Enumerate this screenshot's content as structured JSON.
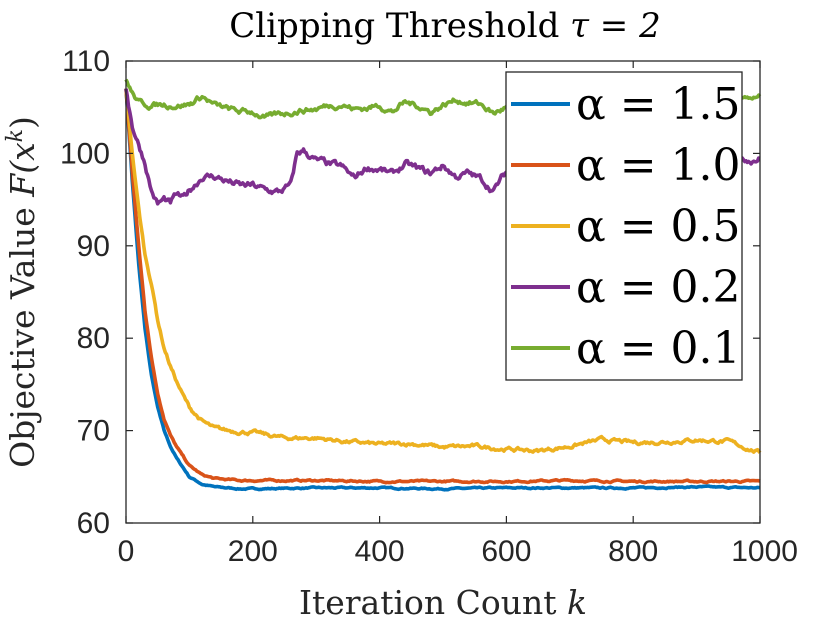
{
  "chart_data": {
    "type": "line",
    "title_prefix": "Clipping Threshold ",
    "title_math": "τ = 2",
    "xlabel_prefix": "Iteration Count ",
    "xlabel_math": "k",
    "ylabel_prefix": "Objective Value ",
    "ylabel_math": "F(x",
    "ylabel_sup": "k",
    "ylabel_close": ")",
    "xlim": [
      0,
      1000
    ],
    "ylim": [
      60,
      110
    ],
    "xticks": [
      0,
      200,
      400,
      600,
      800,
      1000
    ],
    "yticks": [
      60,
      70,
      80,
      90,
      100,
      110
    ],
    "legend_position": "top-right",
    "series": [
      {
        "name": "α = 1.5",
        "color": "#0072BD",
        "x": [
          0,
          10,
          20,
          30,
          40,
          50,
          60,
          70,
          80,
          90,
          100,
          120,
          140,
          160,
          180,
          200,
          300,
          400,
          500,
          600,
          700,
          800,
          900,
          1000
        ],
        "y": [
          107,
          97,
          88,
          81,
          76,
          72.5,
          70,
          68.3,
          67,
          66,
          65,
          64.2,
          63.9,
          63.8,
          63.7,
          63.7,
          63.8,
          63.8,
          63.7,
          63.8,
          63.8,
          63.8,
          63.9,
          63.8
        ]
      },
      {
        "name": "α = 1.0",
        "color": "#D95319",
        "x": [
          0,
          10,
          20,
          30,
          40,
          50,
          60,
          70,
          80,
          90,
          100,
          120,
          140,
          160,
          180,
          200,
          300,
          400,
          500,
          600,
          700,
          800,
          900,
          1000
        ],
        "y": [
          107,
          98,
          90,
          83,
          78,
          74,
          71.3,
          69.5,
          68.2,
          67.2,
          66.2,
          65.2,
          64.8,
          64.7,
          64.6,
          64.6,
          64.6,
          64.5,
          64.5,
          64.5,
          64.6,
          64.5,
          64.5,
          64.5
        ]
      },
      {
        "name": "α = 0.5",
        "color": "#EDB120",
        "x": [
          0,
          10,
          20,
          30,
          40,
          50,
          60,
          70,
          80,
          90,
          100,
          120,
          140,
          160,
          200,
          250,
          300,
          350,
          400,
          450,
          500,
          550,
          600,
          650,
          700,
          750,
          800,
          850,
          900,
          950,
          1000
        ],
        "y": [
          107,
          100,
          94,
          89,
          86,
          82,
          79,
          77,
          75.3,
          73.8,
          72.5,
          71,
          70.2,
          70,
          69.8,
          69.2,
          69.2,
          68.8,
          68.5,
          68.6,
          68.2,
          68.3,
          68,
          67.8,
          68.3,
          69,
          68.7,
          68.8,
          69,
          68.8,
          67.6
        ]
      },
      {
        "name": "α = 0.2",
        "color": "#7E2F8E",
        "x": [
          0,
          10,
          20,
          30,
          40,
          50,
          60,
          70,
          80,
          90,
          100,
          120,
          140,
          160,
          180,
          200,
          220,
          240,
          260,
          270,
          280,
          300,
          320,
          340,
          360,
          380,
          400,
          420,
          440,
          460,
          480,
          500,
          520,
          540,
          560,
          580,
          600,
          1000
        ],
        "y": [
          107,
          103,
          101,
          99,
          96,
          94.5,
          95,
          94.5,
          95.5,
          95,
          96,
          97.5,
          97.5,
          97,
          96.5,
          96.5,
          96,
          95.8,
          96.5,
          100,
          100.3,
          99.2,
          98.8,
          98.5,
          97.3,
          98.5,
          98.3,
          97.7,
          98.8,
          98.3,
          97.8,
          98.7,
          97.5,
          97.8,
          97.2,
          96,
          98,
          99.5
        ]
      },
      {
        "name": "α = 0.1",
        "color": "#77AC30",
        "x": [
          0,
          10,
          20,
          40,
          60,
          80,
          100,
          120,
          140,
          160,
          180,
          200,
          220,
          240,
          260,
          280,
          300,
          320,
          340,
          360,
          380,
          400,
          420,
          440,
          460,
          480,
          500,
          520,
          540,
          560,
          580,
          600,
          1000
        ],
        "y": [
          108,
          106.5,
          105.5,
          105.2,
          105.3,
          105.2,
          105.3,
          106.2,
          105.2,
          104.8,
          104.5,
          104.5,
          103.8,
          104.2,
          104.5,
          104.7,
          104.8,
          105.2,
          105.3,
          104.8,
          104.9,
          105.2,
          104.5,
          105.5,
          105.2,
          104.5,
          105.2,
          105.8,
          105.5,
          105.3,
          104.3,
          105,
          106
        ]
      }
    ]
  }
}
